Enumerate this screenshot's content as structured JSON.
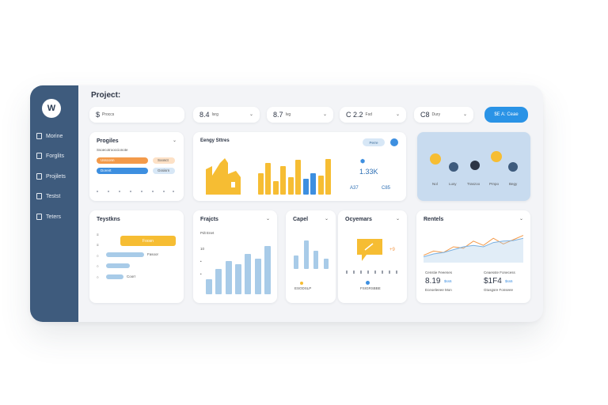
{
  "sidebar": {
    "logo": "W",
    "items": [
      {
        "label": "Morine",
        "icon": "home-icon"
      },
      {
        "label": "Forglits",
        "icon": "document-icon"
      },
      {
        "label": "Projilets",
        "icon": "document-icon"
      },
      {
        "label": "Testst",
        "icon": "folder-icon"
      },
      {
        "label": "Teters",
        "icon": "folder-icon"
      }
    ]
  },
  "header": {
    "title": "Project:",
    "pills": [
      {
        "value": "$",
        "sub": "Proccs"
      },
      {
        "value": "8.4",
        "sub": "Isrg"
      },
      {
        "value": "8.7",
        "sub": "Ivg"
      },
      {
        "value": "C 2.2",
        "sub": "Fsd"
      },
      {
        "value": "C8",
        "sub": "Dury"
      }
    ],
    "action_button": "$E A: Ceae"
  },
  "card_progress": {
    "title": "Progiles",
    "subtitle": "Ssoecotrooccionote",
    "bar_labels": [
      "Ussconn",
      "Doreirt"
    ],
    "bar_right_labels": [
      "Soosct",
      "Gssisrn"
    ]
  },
  "card_sales": {
    "title": "Eengy Sttres",
    "badge": "Perre",
    "value": "1.33K",
    "bottom_labels": [
      "A37",
      "C85"
    ]
  },
  "card_team": {
    "labels": [
      "Nol",
      "Lusy",
      "Traszoo",
      "Prnpo",
      "Begy"
    ]
  },
  "card_tasks": {
    "title": "Teystkns",
    "highlight": "Foosn",
    "labels": [
      "Fasoor",
      "Coorr"
    ]
  },
  "card_projects": {
    "title": "Frajcts",
    "subtitle": "Pdt Enet"
  },
  "card_capacity": {
    "title": "Capel",
    "label": "ESODSLP"
  },
  "card_operations": {
    "title": "Ocyemars",
    "value": "+9",
    "label": "FSIGRSBBE"
  },
  "card_revenue": {
    "title": "Rentels",
    "kpis": [
      {
        "label": "Censtie Feeenes",
        "value": "8.19",
        "badge": "$ss6",
        "sub": "Eceoeleeee Mon"
      },
      {
        "label": "Ceaesste Fonecess",
        "value": "$1F4",
        "badge": "$ss6",
        "sub": "Gtusgsre Fonseee"
      }
    ]
  },
  "chart_data": [
    {
      "type": "bar",
      "name": "sales-bars",
      "values": [
        0.55,
        0.8,
        0.35,
        0.72,
        0.45,
        0.88,
        0.4,
        0.55,
        0.48,
        0.9
      ],
      "colors": [
        "#f6bd33",
        "#f6bd33",
        "#f6bd33",
        "#f6bd33",
        "#f6bd33",
        "#f6bd33",
        "#3d8fe0",
        "#3d8fe0",
        "#f6bd33",
        "#f6bd33"
      ]
    },
    {
      "type": "bar",
      "name": "projects-bars",
      "values": [
        0.3,
        0.5,
        0.65,
        0.6,
        0.8,
        0.7,
        0.95
      ],
      "colors": [
        "#a8cbe8",
        "#a8cbe8",
        "#a8cbe8",
        "#a8cbe8",
        "#a8cbe8",
        "#a8cbe8",
        "#a8cbe8"
      ]
    },
    {
      "type": "bar",
      "name": "capacity-bars",
      "values": [
        0.45,
        0.95,
        0.6,
        0.35
      ],
      "colors": [
        "#a8cbe8",
        "#a8cbe8",
        "#a8cbe8",
        "#a8cbe8"
      ]
    },
    {
      "type": "line",
      "name": "revenue-lines",
      "series": [
        {
          "color": "#f39a4a",
          "values": [
            0.2,
            0.35,
            0.3,
            0.5,
            0.45,
            0.7,
            0.55,
            0.8,
            0.6,
            0.75,
            0.9
          ]
        },
        {
          "color": "#7ab0e0",
          "values": [
            0.15,
            0.25,
            0.3,
            0.4,
            0.5,
            0.55,
            0.5,
            0.65,
            0.7,
            0.72,
            0.8
          ]
        }
      ]
    }
  ],
  "colors": {
    "sidebar": "#3e5b7d",
    "accent_blue": "#2a93e6",
    "accent_yellow": "#f6bd33",
    "accent_orange": "#f39a4a",
    "light_blue": "#a8cbe8",
    "team_card_bg": "#c8dbef"
  }
}
